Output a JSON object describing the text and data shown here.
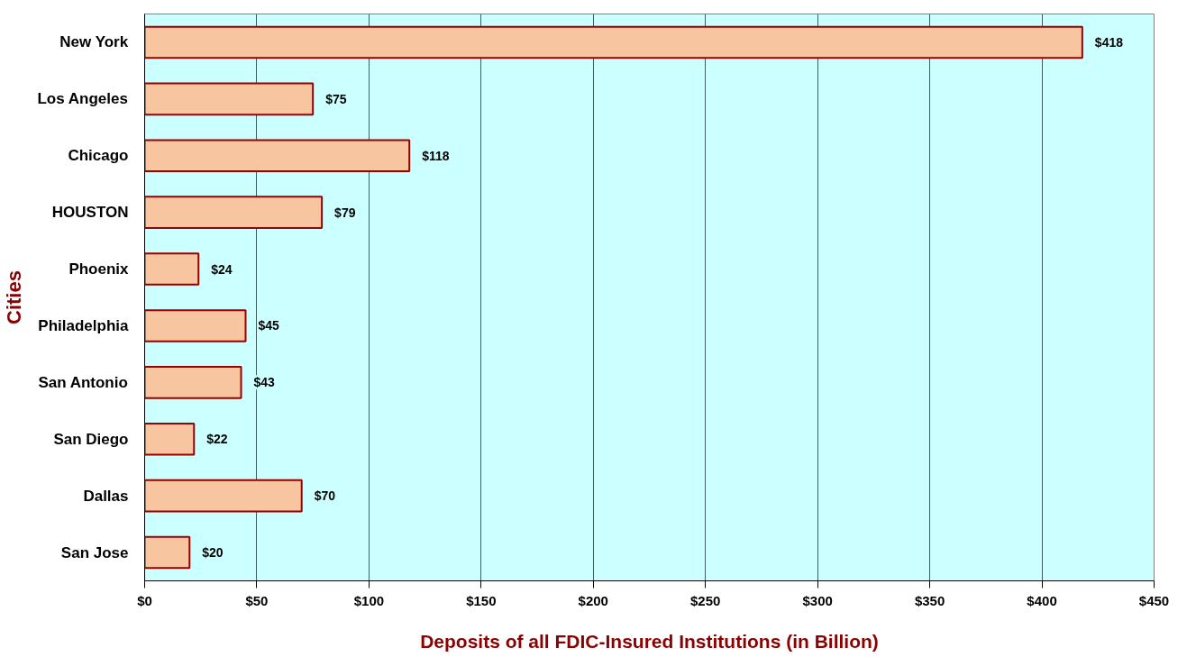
{
  "chart_data": {
    "type": "bar",
    "orientation": "horizontal",
    "xlabel": "Deposits of all FDIC-Insured Institutions (in Billion)",
    "ylabel": "Cities",
    "categories": [
      "New York",
      "Los Angeles",
      "Chicago",
      "HOUSTON",
      "Phoenix",
      "Philadelphia",
      "San Antonio",
      "San Diego",
      "Dallas",
      "San Jose"
    ],
    "values": [
      418,
      75,
      118,
      79,
      24,
      45,
      43,
      22,
      70,
      20
    ],
    "value_labels": [
      "$418",
      "$75",
      "$118",
      "$79",
      "$24",
      "$45",
      "$43",
      "$22",
      "$70",
      "$20"
    ],
    "color": "#f7c59f",
    "xlim": [
      0,
      450
    ],
    "xticks": [
      {
        "value": 0,
        "label": "$0"
      },
      {
        "value": 50,
        "label": "$50"
      },
      {
        "value": 100,
        "label": "$100"
      },
      {
        "value": 150,
        "label": "$150"
      },
      {
        "value": 200,
        "label": "$200"
      },
      {
        "value": 250,
        "label": "$250"
      },
      {
        "value": 300,
        "label": "$300"
      },
      {
        "value": 350,
        "label": "$350"
      },
      {
        "value": 400,
        "label": "$400"
      },
      {
        "value": 450,
        "label": "$450"
      }
    ],
    "grid": "x"
  }
}
